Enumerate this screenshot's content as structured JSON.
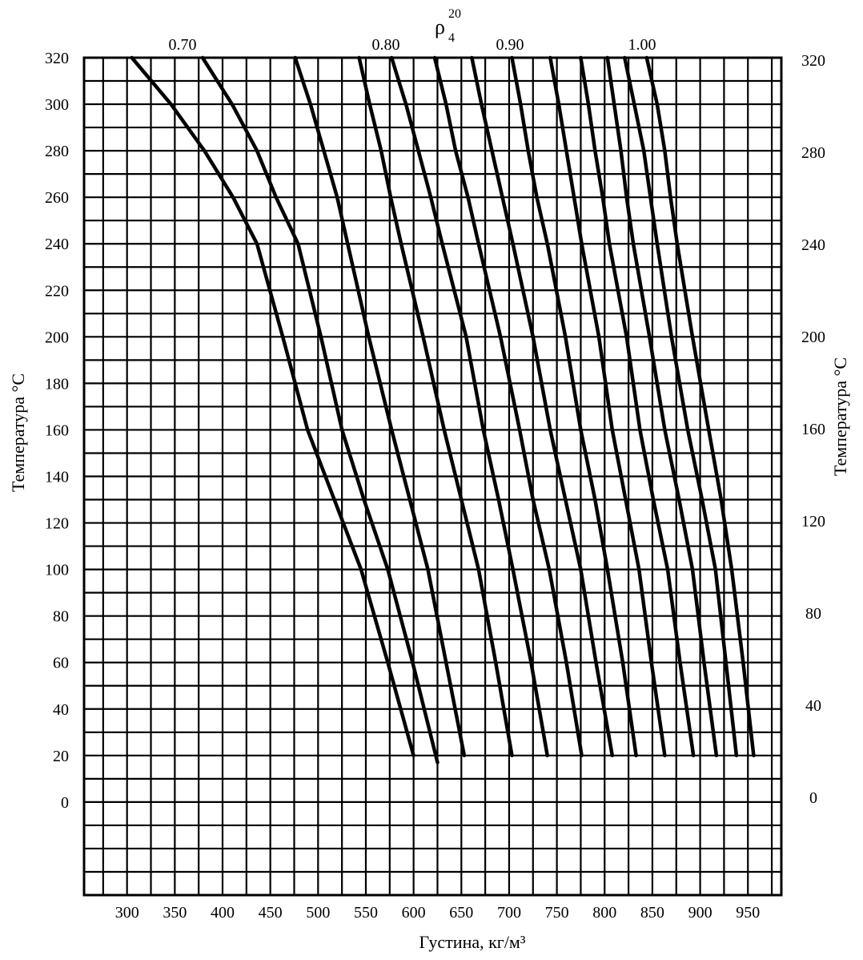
{
  "chart_data": {
    "type": "line",
    "title": "",
    "xlabel": "Густина, кг/м³",
    "ylabel_left": "Температура °С",
    "ylabel_right": "Температура °С",
    "top_axis_label": "ρ",
    "top_axis_label_sup": "20",
    "top_axis_label_sub": "4",
    "grid": true,
    "xlim": [
      255,
      985
    ],
    "ylim": [
      -40,
      320
    ],
    "x_ticks": [
      "300",
      "350",
      "400",
      "450",
      "500",
      "550",
      "600",
      "650",
      "700",
      "750",
      "800",
      "850",
      "900",
      "950"
    ],
    "y_ticks_left": [
      "0",
      "20",
      "40",
      "60",
      "80",
      "100",
      "120",
      "140",
      "160",
      "180",
      "200",
      "220",
      "240",
      "260",
      "280",
      "300",
      "320"
    ],
    "y_ticks_right": [
      "0",
      "40",
      "80",
      "120",
      "160",
      "200",
      "240",
      "280",
      "320"
    ],
    "top_ticks": [
      "0.70",
      "0.80",
      "0.90",
      "1.00"
    ],
    "series": [
      {
        "x": [
          305,
          346,
          381,
          411,
          436,
          463,
          489,
          517,
          545,
          573,
          600
        ],
        "y": [
          320,
          300,
          280,
          260,
          240,
          200,
          160,
          130,
          100,
          60,
          20
        ]
      },
      {
        "x": [
          379,
          410,
          436,
          456,
          479,
          503,
          525,
          548,
          573,
          599,
          625
        ],
        "y": [
          320,
          300,
          280,
          260,
          240,
          200,
          160,
          130,
          100,
          60,
          17
        ]
      },
      {
        "x": [
          476,
          492,
          506,
          520,
          531,
          553,
          577,
          596,
          615,
          634,
          653
        ],
        "y": [
          320,
          300,
          280,
          260,
          240,
          200,
          160,
          130,
          100,
          60,
          20
        ]
      },
      {
        "x": [
          543,
          554,
          566,
          576,
          587,
          610,
          632,
          650,
          668,
          686,
          703
        ],
        "y": [
          320,
          300,
          280,
          260,
          240,
          200,
          160,
          130,
          100,
          60,
          20
        ]
      },
      {
        "x": [
          577,
          592,
          605,
          618,
          630,
          655,
          673,
          689,
          704,
          723,
          740
        ],
        "y": [
          320,
          300,
          280,
          260,
          240,
          200,
          160,
          130,
          100,
          60,
          20
        ]
      },
      {
        "x": [
          622,
          634,
          644,
          657,
          668,
          691,
          711,
          725,
          742,
          760,
          776
        ],
        "y": [
          320,
          300,
          280,
          260,
          240,
          200,
          160,
          130,
          100,
          60,
          20
        ]
      },
      {
        "x": [
          661,
          671,
          682,
          693,
          704,
          725,
          743,
          759,
          775,
          791,
          808
        ],
        "y": [
          320,
          300,
          280,
          260,
          240,
          200,
          160,
          130,
          100,
          60,
          20
        ]
      },
      {
        "x": [
          703,
          712,
          720,
          729,
          740,
          759,
          775,
          790,
          803,
          819,
          833
        ],
        "y": [
          320,
          300,
          280,
          260,
          240,
          200,
          160,
          130,
          100,
          60,
          20
        ]
      },
      {
        "x": [
          743,
          752,
          760,
          768,
          776,
          794,
          808,
          822,
          836,
          849,
          863
        ],
        "y": [
          320,
          300,
          280,
          260,
          240,
          200,
          160,
          130,
          100,
          60,
          20
        ]
      },
      {
        "x": [
          775,
          783,
          790,
          798,
          805,
          823,
          837,
          851,
          866,
          879,
          893
        ],
        "y": [
          320,
          300,
          280,
          260,
          240,
          200,
          160,
          130,
          100,
          60,
          20
        ]
      },
      {
        "x": [
          803,
          810,
          817,
          823,
          830,
          847,
          863,
          878,
          892,
          904,
          917
        ],
        "y": [
          320,
          300,
          280,
          260,
          240,
          200,
          160,
          130,
          100,
          60,
          20
        ]
      },
      {
        "x": [
          821,
          831,
          841,
          848,
          855,
          870,
          887,
          902,
          916,
          927,
          938
        ],
        "y": [
          320,
          300,
          280,
          260,
          240,
          200,
          160,
          130,
          100,
          60,
          20
        ]
      },
      {
        "x": [
          844,
          855,
          863,
          869,
          876,
          892,
          909,
          922,
          933,
          945,
          956
        ],
        "y": [
          320,
          300,
          280,
          260,
          240,
          200,
          160,
          130,
          100,
          60,
          20
        ]
      }
    ]
  }
}
